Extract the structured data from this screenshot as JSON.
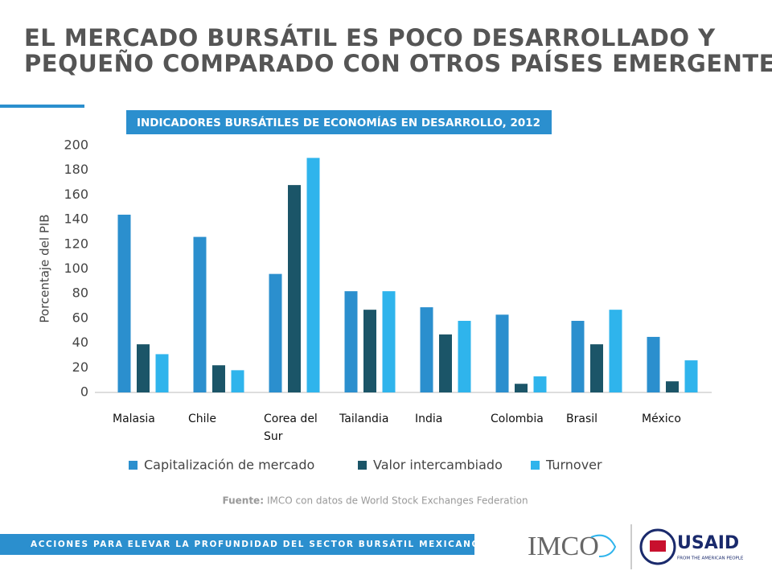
{
  "slide": {
    "title_lines": [
      "EL MERCADO BURSÁTIL ES POCO DESARROLLADO Y",
      "PEQUEÑO COMPARADO CON OTROS PAÍSES EMERGENTES"
    ],
    "footer": "ACCIONES PARA ELEVAR LA PROFUNDIDAD DEL SECTOR BURSÁTIL MEXICANO",
    "source_label": "Fuente:",
    "source": "IMCO con datos de World Stock Exchanges Federation",
    "logo_imco": "IMCO",
    "logo_usaid": "USAID",
    "logo_usaid_tagline": "FROM THE AMERICAN PEOPLE"
  },
  "chart_data": {
    "type": "bar",
    "title": "INDICADORES BURSÁTILES DE ECONOMÍAS EN DESARROLLO, 2012",
    "y_label": "Porcentaje del PIB",
    "categories": [
      "Malasia",
      "Chile",
      "Corea del Sur",
      "Tailandia",
      "India",
      "Colombia",
      "Brasil",
      "México"
    ],
    "series": [
      {
        "name": "Capitalización de mercado",
        "color": "#2b8fce",
        "values": [
          144,
          126,
          96,
          82,
          69,
          63,
          58,
          45
        ]
      },
      {
        "name": "Valor intercambiado",
        "color": "#1b5568",
        "values": [
          39,
          22,
          168,
          67,
          47,
          7,
          39,
          9
        ]
      },
      {
        "name": "Turnover",
        "color": "#2fb4ec",
        "values": [
          31,
          18,
          190,
          82,
          58,
          13,
          67,
          26
        ]
      }
    ],
    "ylim": [
      0,
      200
    ],
    "yticks": [
      0,
      20,
      40,
      60,
      80,
      100,
      120,
      140,
      160,
      180,
      200
    ],
    "grid": false,
    "legend": "bottom"
  }
}
